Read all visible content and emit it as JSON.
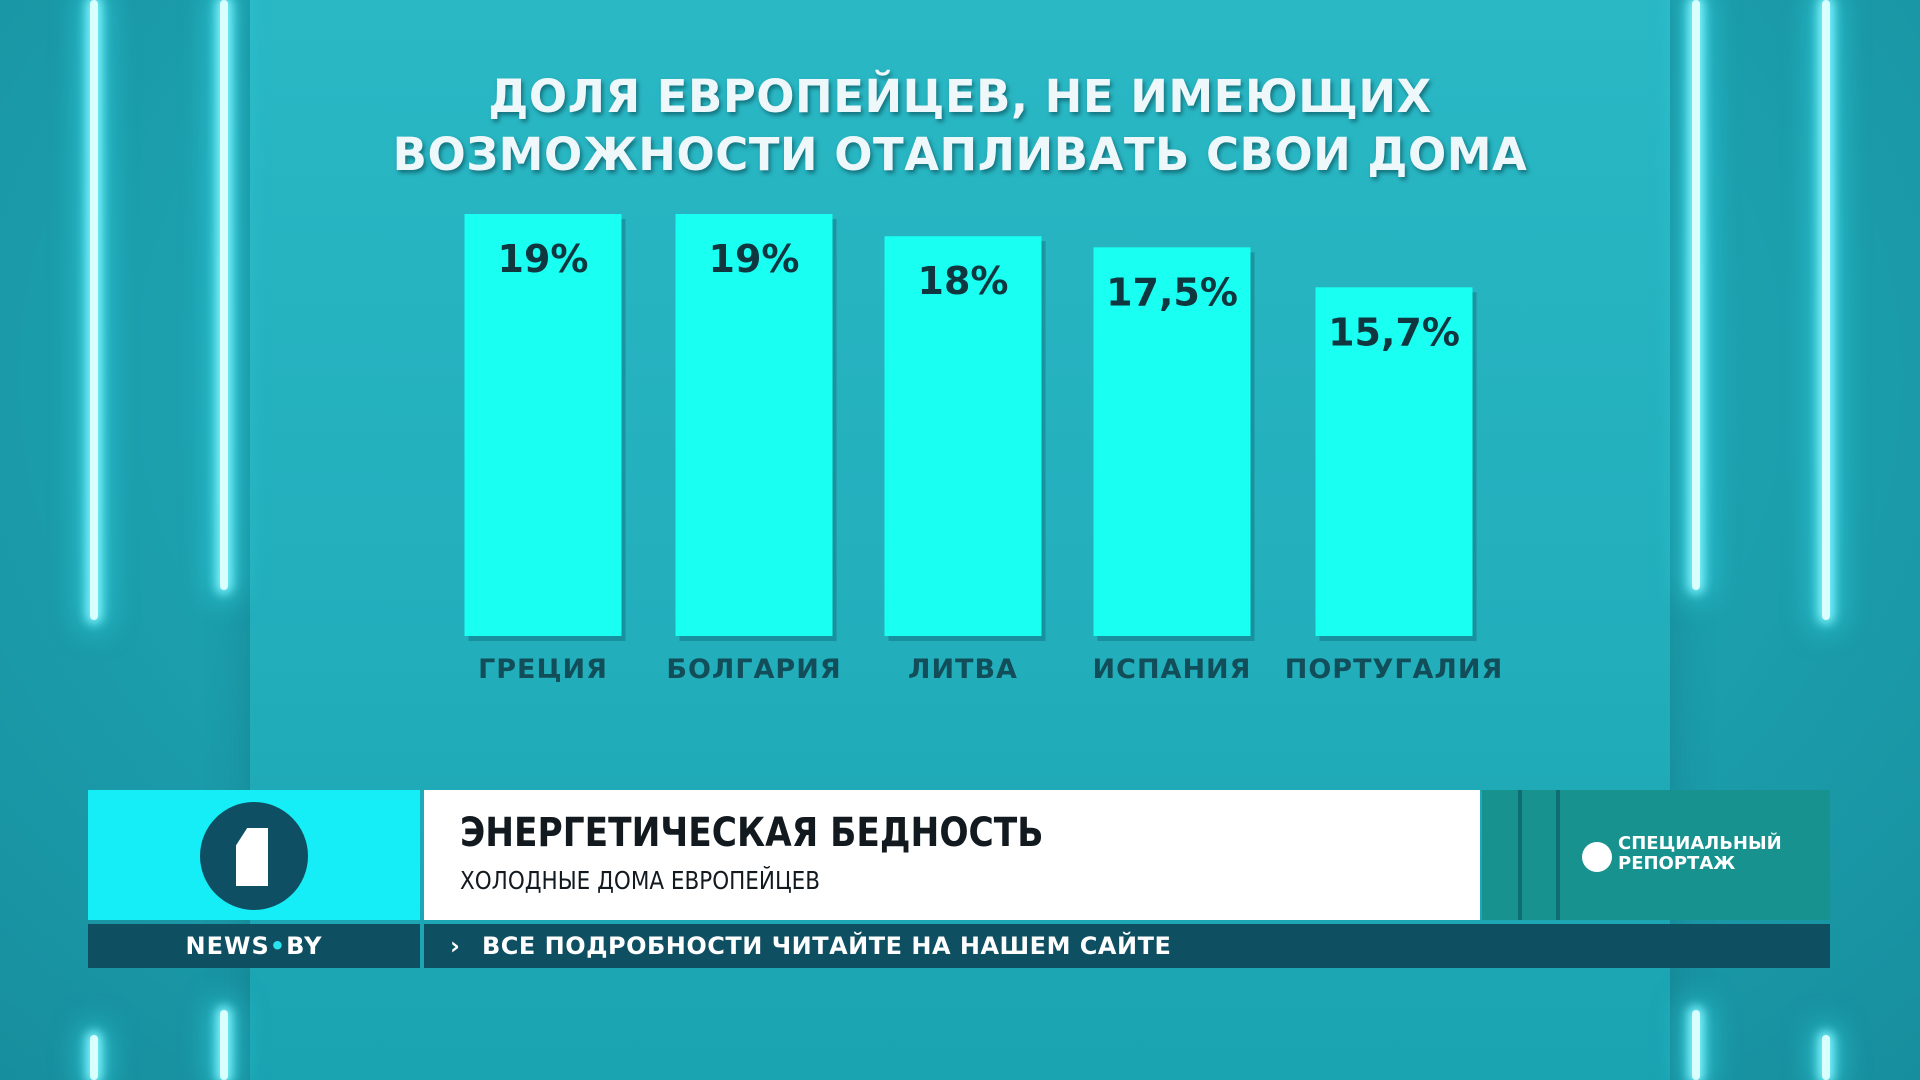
{
  "chart_data": {
    "type": "bar",
    "title": "ДОЛЯ ЕВРОПЕЙЦЕВ, НЕ ИМЕЮЩИХ ВОЗМОЖНОСТИ ОТАПЛИВАТЬ СВОИ ДОМА",
    "categories": [
      "ГРЕЦИЯ",
      "БОЛГАРИЯ",
      "ЛИТВА",
      "ИСПАНИЯ",
      "ПОРТУГАЛИЯ"
    ],
    "values": [
      19,
      19,
      18,
      17.5,
      15.7
    ],
    "value_labels": [
      "19%",
      "19%",
      "18%",
      "17,5%",
      "15,7%"
    ],
    "ylim": [
      0,
      19
    ],
    "grid": false,
    "bar_color": "#19fff2"
  },
  "lower_third": {
    "headline": "ЭНЕРГЕТИЧЕСКАЯ БЕДНОСТЬ",
    "subheadline": "ХОЛОДНЫЕ ДОМА ЕВРОПЕЙЦЕВ",
    "badge_line1": "СПЕЦИАЛЬНЫЙ",
    "badge_line2": "РЕПОРТАЖ",
    "logo_icon": "channel-one-logo-icon"
  },
  "ticker": {
    "brand_left": "NEWS",
    "brand_dot": "•",
    "brand_right": "BY",
    "arrow": "›",
    "text": "ВСЕ ПОДРОБНОСТИ ЧИТАЙТЕ НА НАШЕМ САЙТЕ"
  },
  "colors": {
    "background": "#1ea6b4",
    "accent": "#15eef6",
    "ticker_bg": "#0e4f62",
    "badge_bg": "#17928f"
  }
}
